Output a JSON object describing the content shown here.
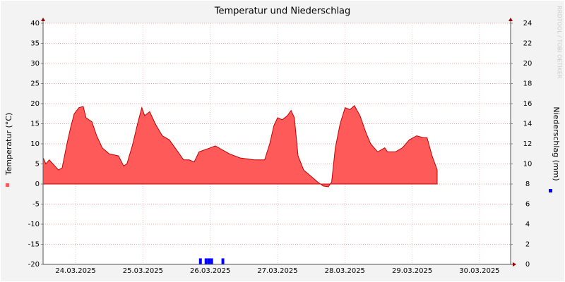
{
  "chart_data": {
    "type": "area",
    "title": "Temperatur und Niederschlag",
    "y_label": "Temperatur (°C)",
    "y2_label": "Niederschlag (mm)",
    "watermark": "RRDTOOL / TOBI OETIKER",
    "xlim": [
      0.4,
      167.1
    ],
    "xticks": [
      {
        "value": 12,
        "label": "24.03.2025"
      },
      {
        "value": 36,
        "label": "25.03.2025"
      },
      {
        "value": 60,
        "label": "26.03.2025"
      },
      {
        "value": 84,
        "label": "27.03.2025"
      },
      {
        "value": 108,
        "label": "28.03.2025"
      },
      {
        "value": 132,
        "label": "29.03.2025"
      },
      {
        "value": 156,
        "label": "30.03.2025"
      }
    ],
    "ylim": [
      -20,
      40
    ],
    "yticks": [
      -20,
      -15,
      -10,
      -5,
      0,
      5,
      10,
      15,
      20,
      25,
      30,
      35,
      40
    ],
    "y2lim": [
      0,
      24
    ],
    "y2ticks": [
      0,
      2,
      4,
      6,
      8,
      10,
      12,
      14,
      16,
      18,
      20,
      22,
      24
    ],
    "grid": true,
    "series": [
      {
        "name": "Temperatur",
        "type": "area",
        "color": "#ff5a5a",
        "x": [
          0.4,
          1.4,
          2.6,
          3.9,
          5.9,
          7.2,
          8.9,
          10.2,
          11.5,
          13.2,
          14.7,
          15.7,
          17.8,
          19.5,
          21.5,
          24.0,
          27.3,
          29.1,
          30.3,
          32.4,
          34.1,
          35.6,
          36.6,
          38.4,
          40.4,
          42.9,
          45.4,
          48.5,
          50.5,
          52.5,
          54.3,
          56.0,
          58.0,
          60.0,
          61.8,
          64.3,
          66.9,
          70.6,
          75.7,
          79.4,
          81.2,
          82.7,
          84.0,
          85.7,
          87.5,
          88.8,
          90.0,
          91.3,
          93.3,
          95.8,
          98.3,
          100.3,
          102.1,
          103.3,
          104.6,
          106.3,
          108.1,
          109.8,
          111.4,
          113.4,
          115.4,
          117.2,
          119.7,
          122.2,
          123.2,
          126.0,
          128.5,
          131.0,
          133.6,
          136.1,
          137.3,
          139.1,
          140.9
        ],
        "values": [
          6.5,
          5,
          6,
          5,
          3.5,
          4,
          10,
          14,
          17.5,
          19,
          19.3,
          16.5,
          15.5,
          12,
          9,
          7.5,
          7,
          4.5,
          5,
          10,
          15,
          19,
          17,
          18,
          15,
          12,
          11,
          8,
          6,
          6,
          5.5,
          8,
          8.5,
          9,
          9.5,
          8.5,
          7.5,
          6.5,
          6,
          6,
          10,
          14.5,
          16.5,
          16,
          17,
          18.3,
          16.5,
          7,
          3.5,
          2,
          0.5,
          -0.5,
          -0.7,
          0.5,
          9,
          15,
          19,
          18.5,
          19.5,
          17,
          13,
          10,
          8,
          9,
          8,
          8,
          9,
          11,
          12,
          11.5,
          11.5,
          7,
          3.5
        ]
      },
      {
        "name": "Niederschlag",
        "type": "bar",
        "axis": "y2",
        "color": "#0000ff",
        "x": [
          56.5,
          58.5,
          59.5,
          60.5,
          64.5
        ],
        "values": [
          0.6,
          0.6,
          0.6,
          0.6,
          0.6
        ]
      }
    ]
  }
}
